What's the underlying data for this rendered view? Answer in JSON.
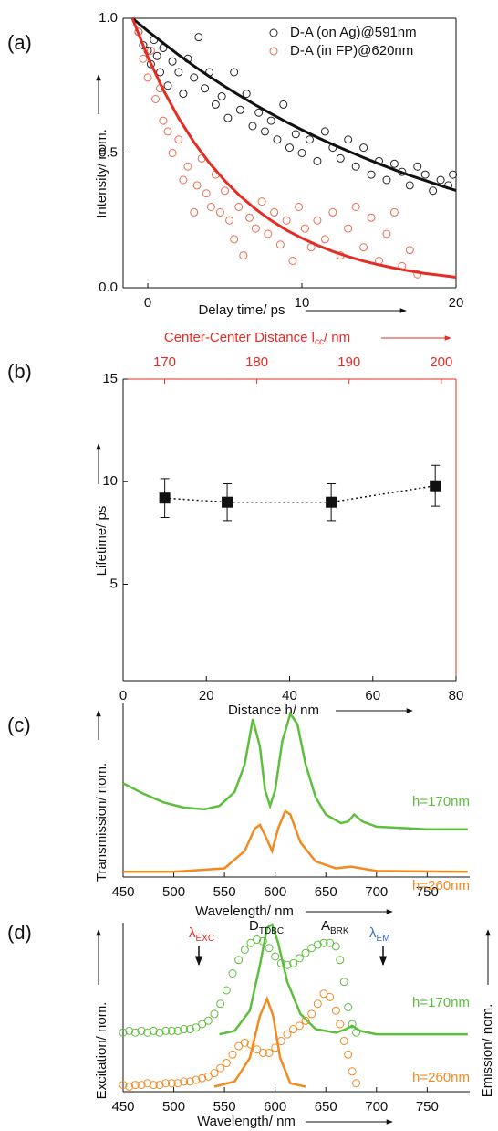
{
  "chart_data": [
    {
      "label": "(a)",
      "type": "scatter",
      "frame": "box",
      "xlabel": "Delay time/ ps",
      "ylabel": "Intensity/ nom.",
      "xlim": [
        -1.6,
        20
      ],
      "ylim": [
        0,
        1.0
      ],
      "xticks": [
        0,
        10,
        20
      ],
      "yticks": [
        {
          "value": 0,
          "label": "0.0"
        },
        0.5,
        {
          "value": 1,
          "label": "1.0"
        }
      ],
      "legend": "upper right",
      "series": [
        {
          "name": "D-A (on Ag)@591nm",
          "color": "#222222",
          "style": "markers",
          "x": [
            -0.6,
            -0.3,
            0,
            0.2,
            0.4,
            0.6,
            0.8,
            1.0,
            1.3,
            1.6,
            2.0,
            2.3,
            2.6,
            3.0,
            3.3,
            3.7,
            4.0,
            4.4,
            4.8,
            5.2,
            5.6,
            6.0,
            6.4,
            6.8,
            7.2,
            7.6,
            8.0,
            8.4,
            8.8,
            9.2,
            9.6,
            10.0,
            10.5,
            11.0,
            11.5,
            12.0,
            12.5,
            13.0,
            13.5,
            14.0,
            14.5,
            15.0,
            15.5,
            16.0,
            16.5,
            17.0,
            17.5,
            18.0,
            18.5,
            19.0,
            19.5,
            19.8
          ],
          "values": [
            0.95,
            0.9,
            0.88,
            0.83,
            0.92,
            0.86,
            0.8,
            0.89,
            0.75,
            0.84,
            0.8,
            0.72,
            0.85,
            0.78,
            0.93,
            0.74,
            0.8,
            0.68,
            0.71,
            0.63,
            0.8,
            0.66,
            0.72,
            0.6,
            0.65,
            0.58,
            0.62,
            0.55,
            0.68,
            0.52,
            0.57,
            0.5,
            0.55,
            0.47,
            0.58,
            0.52,
            0.48,
            0.55,
            0.45,
            0.52,
            0.42,
            0.47,
            0.4,
            0.46,
            0.43,
            0.38,
            0.45,
            0.42,
            0.36,
            0.4,
            0.38,
            0.42
          ]
        },
        {
          "name": "D-A (in FP)@620nm",
          "color": "#ee6a4f",
          "style": "markers",
          "x": [
            -0.6,
            -0.3,
            0,
            0.2,
            0.5,
            0.8,
            1.0,
            1.3,
            1.6,
            2.0,
            2.3,
            2.6,
            3.0,
            3.2,
            3.5,
            3.8,
            4.1,
            4.4,
            4.7,
            5.0,
            5.3,
            5.6,
            5.9,
            6.2,
            6.6,
            7.0,
            7.4,
            7.8,
            8.2,
            8.6,
            9.0,
            9.4,
            9.8,
            10.2,
            10.6,
            11.0,
            11.5,
            12.0,
            12.5,
            13.0,
            13.5,
            14.0,
            14.5,
            15.0,
            15.5,
            16.0,
            16.5,
            17.0,
            17.5
          ],
          "values": [
            0.95,
            0.85,
            0.78,
            0.88,
            0.7,
            0.74,
            0.62,
            0.58,
            0.5,
            0.55,
            0.4,
            0.45,
            0.28,
            0.38,
            0.48,
            0.35,
            0.3,
            0.42,
            0.28,
            0.36,
            0.25,
            0.18,
            0.3,
            0.12,
            0.26,
            0.22,
            0.32,
            0.2,
            0.28,
            0.16,
            0.25,
            0.1,
            0.3,
            0.22,
            0.15,
            0.25,
            0.18,
            0.28,
            0.12,
            0.22,
            0.3,
            0.15,
            0.26,
            0.1,
            0.2,
            0.28,
            0.08,
            0.14,
            0.05
          ]
        },
        {
          "color": "#111111",
          "style": "line",
          "x": [
            -1,
            0,
            1,
            2,
            3,
            4,
            5,
            6,
            7,
            8,
            9,
            10,
            11,
            12,
            13,
            14,
            15,
            16,
            17,
            18,
            19,
            20
          ],
          "values": [
            1.0,
            0.953,
            0.908,
            0.864,
            0.823,
            0.784,
            0.747,
            0.712,
            0.678,
            0.646,
            0.615,
            0.586,
            0.558,
            0.532,
            0.507,
            0.483,
            0.46,
            0.438,
            0.417,
            0.398,
            0.379,
            0.361
          ]
        },
        {
          "color": "#e52c25",
          "style": "line",
          "x": [
            -1,
            0,
            1,
            2,
            3,
            4,
            5,
            6,
            7,
            8,
            9,
            10,
            11,
            12,
            13,
            14,
            15,
            16,
            17,
            18,
            19,
            20
          ],
          "values": [
            1.0,
            0.857,
            0.735,
            0.63,
            0.54,
            0.463,
            0.397,
            0.34,
            0.292,
            0.25,
            0.214,
            0.184,
            0.158,
            0.135,
            0.116,
            0.099,
            0.085,
            0.073,
            0.062,
            0.053,
            0.046,
            0.039
          ]
        }
      ]
    },
    {
      "label": "(b)",
      "type": "errorbar",
      "frame": "box",
      "xlabel": "Distance h/ nm",
      "ylabel": "Lifetime/ ps",
      "x2label": {
        "text": "Center-Center Distance l",
        "sub": "cc",
        "unit": "/ nm"
      },
      "x2color": "#e52c25",
      "xlim": [
        0,
        80
      ],
      "ylim": [
        0.3,
        15
      ],
      "x2lim": [
        165.5,
        201.6
      ],
      "xticks": [
        0,
        20,
        40,
        60,
        80
      ],
      "yticks": [
        5,
        10,
        15
      ],
      "x2ticks": [
        170,
        180,
        190,
        200
      ],
      "series": [
        {
          "color": "#111111",
          "x": [
            10,
            25,
            50,
            75
          ],
          "values": [
            9.2,
            9.0,
            9.0,
            9.8
          ],
          "errors": [
            0.95,
            0.9,
            0.9,
            1.0
          ]
        }
      ]
    },
    {
      "label": "(c)",
      "type": "line",
      "frame": "axes",
      "xlabel": "Wavelength/ nm",
      "ylabel": "Transmission/ nom.",
      "xlim": [
        450,
        792
      ],
      "ylim": [
        0,
        10
      ],
      "xticks": [
        450,
        500,
        550,
        600,
        650,
        700,
        750
      ],
      "series": [
        {
          "color": "#5cbf3c",
          "style": "line",
          "x": [
            450,
            470,
            490,
            510,
            530,
            545,
            560,
            570,
            578,
            585,
            590,
            595,
            600,
            607,
            615,
            622,
            630,
            640,
            650,
            665,
            672,
            678,
            686,
            700,
            750,
            790
          ],
          "values": [
            5.4,
            4.8,
            4.3,
            4.0,
            3.9,
            4.1,
            4.9,
            6.5,
            9.1,
            7.5,
            5.0,
            4.1,
            5.0,
            7.8,
            9.4,
            8.8,
            6.5,
            4.6,
            3.6,
            3.1,
            3.2,
            3.6,
            3.2,
            2.9,
            2.75,
            2.75
          ]
        },
        {
          "color": "#f28a22",
          "style": "line",
          "x": [
            450,
            500,
            550,
            570,
            580,
            585,
            590,
            597,
            603,
            610,
            615,
            625,
            640,
            660,
            675,
            700,
            790
          ],
          "values": [
            0.3,
            0.3,
            0.5,
            1.5,
            2.8,
            3.0,
            2.4,
            1.5,
            2.8,
            3.8,
            3.6,
            2.0,
            0.9,
            0.5,
            0.6,
            0.35,
            0.3
          ]
        }
      ],
      "annotations": [
        {
          "text": "h=170nm",
          "color": "#5cbf3c"
        },
        {
          "text": "h=260nm",
          "color": "#f28a22"
        }
      ]
    },
    {
      "label": "(d)",
      "type": "line",
      "frame": "axes",
      "xlabel": "Wavelength/ nm",
      "ylabel": "Excitation/ nom.",
      "y2label": "Emission/ nom.",
      "xlim": [
        450,
        792
      ],
      "ylim": [
        0,
        10
      ],
      "xticks": [
        450,
        500,
        550,
        600,
        650,
        700,
        750
      ],
      "series": [
        {
          "color": "#5cbf3c",
          "style": "markers",
          "x": [
            450,
            456,
            462,
            468,
            474,
            480,
            486,
            492,
            498,
            504,
            510,
            516,
            522,
            528,
            534,
            540,
            546,
            552,
            558,
            564,
            570,
            576,
            582,
            588,
            594,
            600,
            606,
            612,
            618,
            624,
            630,
            636,
            642,
            648,
            654,
            660,
            664,
            668,
            672,
            676,
            680
          ],
          "values": [
            3.5,
            3.6,
            3.5,
            3.6,
            3.5,
            3.6,
            3.5,
            3.6,
            3.6,
            3.6,
            3.7,
            3.7,
            3.8,
            4.0,
            4.2,
            4.6,
            5.2,
            6.0,
            7.0,
            7.8,
            8.4,
            8.8,
            9.0,
            8.9,
            8.5,
            8.0,
            7.6,
            7.5,
            7.6,
            7.9,
            8.2,
            8.5,
            8.7,
            8.8,
            8.8,
            8.6,
            7.8,
            6.5,
            5.0,
            4.0,
            3.5
          ]
        },
        {
          "color": "#5cbf3c",
          "style": "line",
          "x": [
            545,
            560,
            575,
            585,
            592,
            597,
            603,
            612,
            625,
            640,
            660,
            670,
            676,
            684,
            700,
            790
          ],
          "values": [
            3.4,
            3.6,
            4.8,
            7.5,
            9.7,
            9.9,
            8.8,
            6.5,
            4.6,
            3.7,
            3.5,
            3.7,
            3.9,
            3.6,
            3.4,
            3.4
          ]
        },
        {
          "color": "#f28a22",
          "style": "markers",
          "x": [
            450,
            456,
            462,
            468,
            474,
            480,
            486,
            492,
            498,
            504,
            510,
            516,
            522,
            528,
            534,
            540,
            546,
            552,
            558,
            564,
            570,
            576,
            582,
            588,
            594,
            600,
            606,
            612,
            618,
            624,
            630,
            636,
            642,
            648,
            654,
            660,
            664,
            668,
            672,
            676,
            680
          ],
          "values": [
            0.4,
            0.3,
            0.4,
            0.4,
            0.5,
            0.4,
            0.4,
            0.5,
            0.5,
            0.5,
            0.6,
            0.6,
            0.7,
            0.8,
            0.9,
            1.1,
            1.4,
            1.7,
            2.2,
            2.7,
            2.9,
            2.8,
            2.5,
            2.3,
            2.3,
            2.6,
            3.0,
            3.4,
            3.7,
            3.9,
            4.2,
            4.6,
            5.2,
            5.8,
            5.6,
            4.8,
            4.0,
            3.0,
            2.2,
            1.2,
            0.5
          ]
        },
        {
          "color": "#f28a22",
          "style": "line",
          "x": [
            540,
            560,
            575,
            585,
            592,
            598,
            605,
            615,
            630
          ],
          "values": [
            0.3,
            0.6,
            2.0,
            4.5,
            5.5,
            4.5,
            2.0,
            0.5,
            0.3
          ]
        }
      ],
      "annotations": [
        {
          "text": "λ",
          "sub": "EXC",
          "color": "#e52c25"
        },
        {
          "text": "D",
          "sub": "TDBC",
          "color": "#111111"
        },
        {
          "text": "A",
          "sub": "BRK",
          "color": "#111111"
        },
        {
          "text": "λ",
          "sub": "EM",
          "color": "#3a6fc4"
        },
        {
          "text": "h=170nm",
          "color": "#5cbf3c"
        },
        {
          "text": "h=260nm",
          "color": "#f28a22"
        }
      ]
    }
  ]
}
